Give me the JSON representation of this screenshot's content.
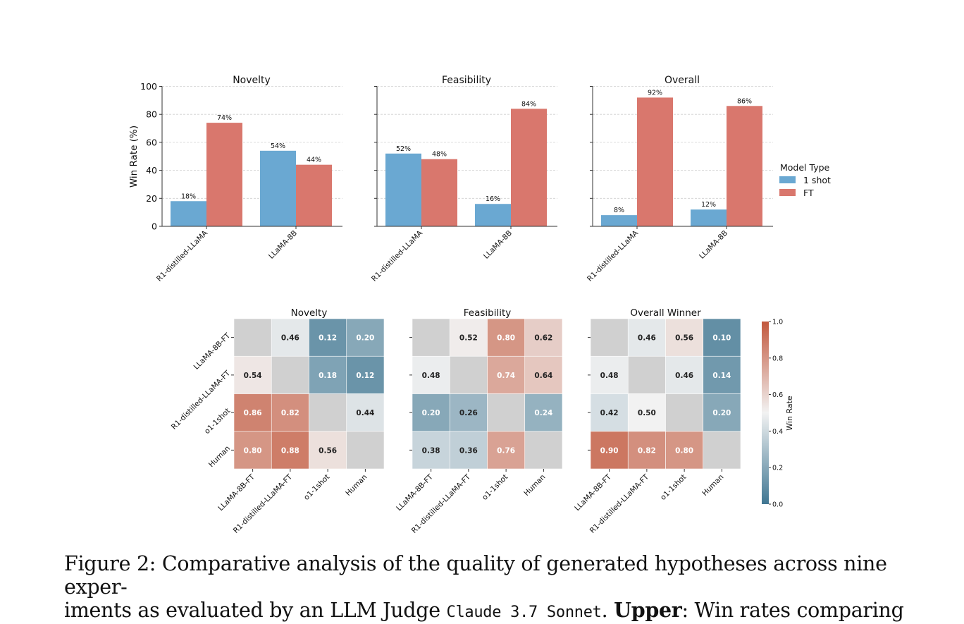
{
  "figure": {
    "caption_label": "Figure 2:",
    "caption_line1_rest": "Comparative analysis of the quality of generated hypotheses across nine exper-",
    "caption_line2_start": "iments as evaluated by an LLM Judge",
    "caption_code": "Claude 3.7 Sonnet",
    "caption_bold": "Upper",
    "caption_line2_end": ": Win rates comparing"
  },
  "chart_data": [
    {
      "type": "bar",
      "title": "Novelty",
      "ylabel": "Win Rate (%)",
      "ylim": [
        0,
        100
      ],
      "yticks": [
        "0",
        "20",
        "40",
        "60",
        "80",
        "100"
      ],
      "categories": [
        "R1-distilled-LLaMA",
        "LLaMA-8B"
      ],
      "series": [
        {
          "name": "1 shot",
          "values": [
            18,
            54
          ],
          "labels": [
            "18%",
            "54%"
          ]
        },
        {
          "name": "FT",
          "values": [
            74,
            44
          ],
          "labels": [
            "74%",
            "44%"
          ]
        }
      ],
      "grid": "horizontal dashed"
    },
    {
      "type": "bar",
      "title": "Feasibility",
      "ylim": [
        0,
        100
      ],
      "categories": [
        "R1-distilled-LLaMA",
        "LLaMA-8B"
      ],
      "series": [
        {
          "name": "1 shot",
          "values": [
            52,
            16
          ],
          "labels": [
            "52%",
            "16%"
          ]
        },
        {
          "name": "FT",
          "values": [
            48,
            84
          ],
          "labels": [
            "48%",
            "84%"
          ]
        }
      ],
      "grid": "horizontal dashed"
    },
    {
      "type": "bar",
      "title": "Overall",
      "ylim": [
        0,
        100
      ],
      "categories": [
        "R1-distilled-LLaMA",
        "LLaMA-8B"
      ],
      "series": [
        {
          "name": "1 shot",
          "values": [
            8,
            12
          ],
          "labels": [
            "8%",
            "12%"
          ]
        },
        {
          "name": "FT",
          "values": [
            92,
            86
          ],
          "labels": [
            "92%",
            "86%"
          ]
        }
      ],
      "grid": "horizontal dashed",
      "legend": {
        "title": "Model Type",
        "entries": [
          "1 shot",
          "FT"
        ],
        "placement": "right"
      }
    },
    {
      "type": "heatmap",
      "title": "Novelty",
      "rows": [
        "LLaMA-8B-FT",
        "R1-distilled-LLaMA-FT",
        "o1-1shot",
        "Human"
      ],
      "cols": [
        "LLaMA-8B-FT",
        "R1-distilled-LLaMA-FT",
        "o1-1shot",
        "Human"
      ],
      "values": [
        [
          null,
          0.46,
          0.12,
          0.2
        ],
        [
          0.54,
          null,
          0.18,
          0.12
        ],
        [
          0.86,
          0.82,
          null,
          0.44
        ],
        [
          0.8,
          0.88,
          0.56,
          null
        ]
      ],
      "labels": [
        [
          "",
          "0.46",
          "0.12",
          "0.20"
        ],
        [
          "0.54",
          "",
          "0.18",
          "0.12"
        ],
        [
          "0.86",
          "0.82",
          "",
          "0.44"
        ],
        [
          "0.80",
          "0.88",
          "0.56",
          ""
        ]
      ]
    },
    {
      "type": "heatmap",
      "title": "Feasibility",
      "rows": [
        "LLaMA-8B-FT",
        "R1-distilled-LLaMA-FT",
        "o1-1shot",
        "Human"
      ],
      "cols": [
        "LLaMA-8B-FT",
        "R1-distilled-LLaMA-FT",
        "o1-1shot",
        "Human"
      ],
      "values": [
        [
          null,
          0.52,
          0.8,
          0.62
        ],
        [
          0.48,
          null,
          0.74,
          0.64
        ],
        [
          0.2,
          0.26,
          null,
          0.24
        ],
        [
          0.38,
          0.36,
          0.76,
          null
        ]
      ],
      "labels": [
        [
          "",
          "0.52",
          "0.80",
          "0.62"
        ],
        [
          "0.48",
          "",
          "0.74",
          "0.64"
        ],
        [
          "0.20",
          "0.26",
          "",
          "0.24"
        ],
        [
          "0.38",
          "0.36",
          "0.76",
          ""
        ]
      ]
    },
    {
      "type": "heatmap",
      "title": "Overall Winner",
      "rows": [
        "LLaMA-8B-FT",
        "R1-distilled-LLaMA-FT",
        "o1-1shot",
        "Human"
      ],
      "cols": [
        "LLaMA-8B-FT",
        "R1-distilled-LLaMA-FT",
        "o1-1shot",
        "Human"
      ],
      "values": [
        [
          null,
          0.46,
          0.56,
          0.1
        ],
        [
          0.48,
          null,
          0.46,
          0.14
        ],
        [
          0.42,
          0.5,
          null,
          0.2
        ],
        [
          0.9,
          0.82,
          0.8,
          null
        ]
      ],
      "labels": [
        [
          "",
          "0.46",
          "0.56",
          "0.10"
        ],
        [
          "0.48",
          "",
          "0.46",
          "0.14"
        ],
        [
          "0.42",
          "0.50",
          "",
          "0.20"
        ],
        [
          "0.90",
          "0.82",
          "0.80",
          ""
        ]
      ]
    }
  ],
  "colorbar": {
    "label": "Win Rate",
    "ticks": [
      "0.0",
      "0.2",
      "0.4",
      "0.6",
      "0.8",
      "1.0"
    ],
    "range": [
      0,
      1
    ]
  },
  "colors": {
    "one_shot": "#6aa8d2",
    "ft": "#d9776d",
    "diagonal": "#d0d0d0",
    "cmap_low": "#3f7692",
    "cmap_mid": "#f2f2f2",
    "cmap_high": "#c2583d"
  }
}
